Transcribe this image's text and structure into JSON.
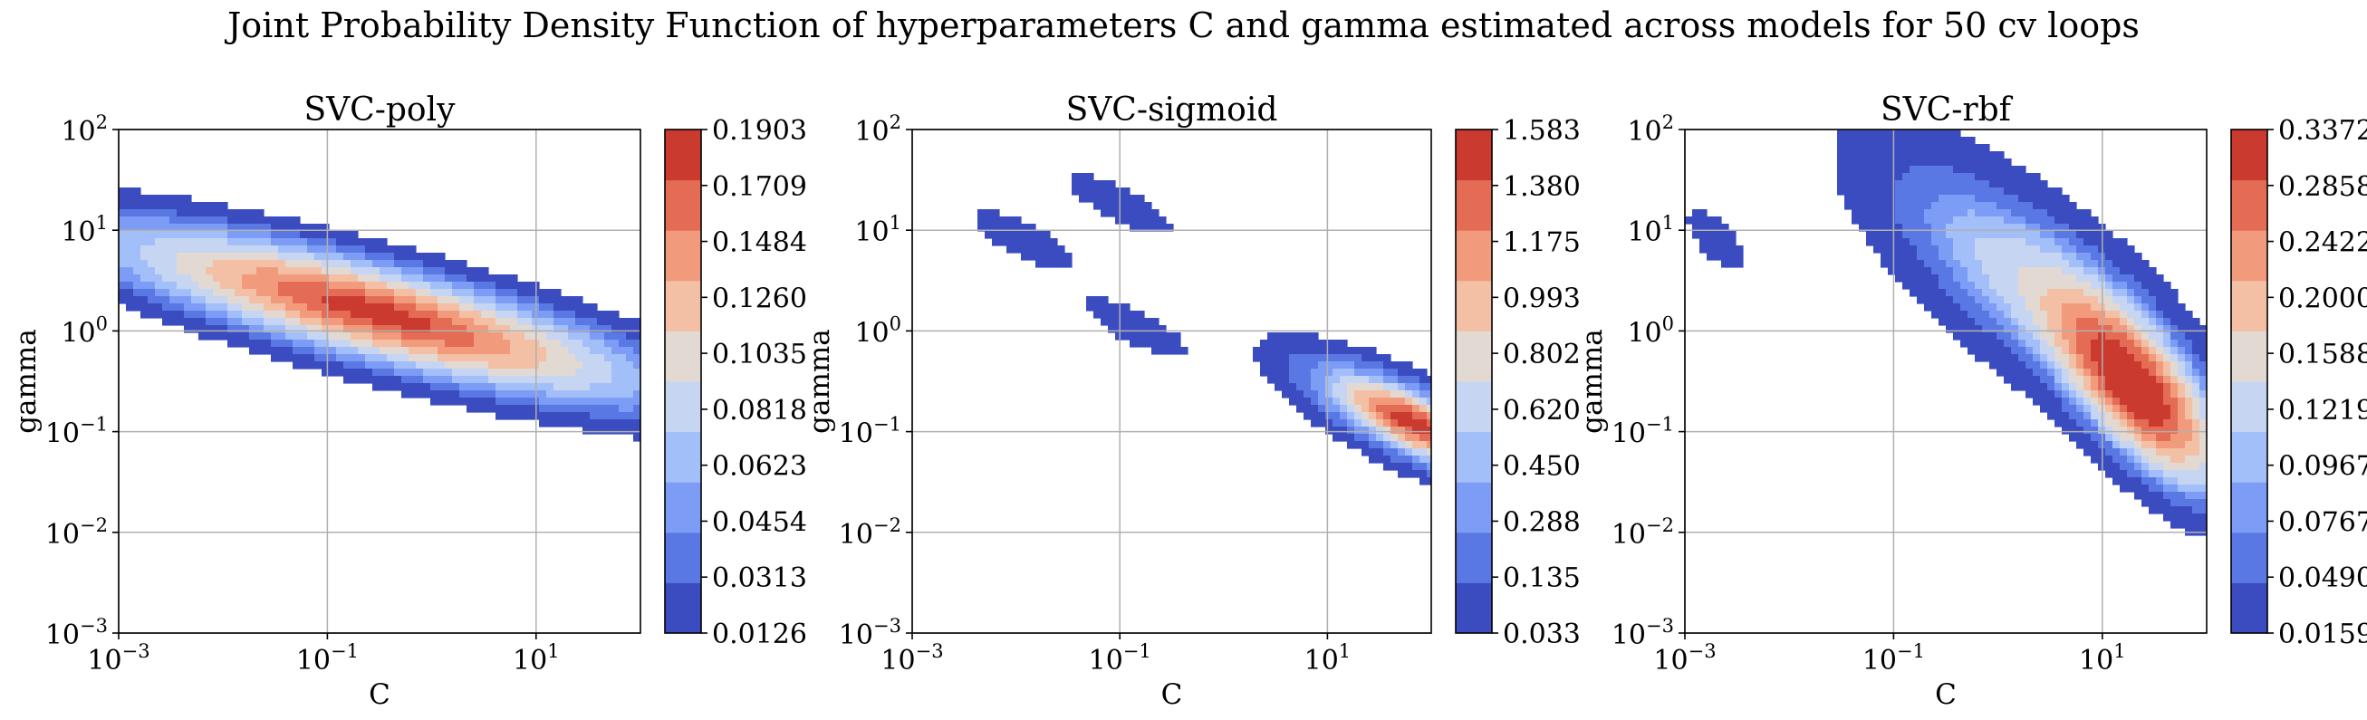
{
  "suptitle": "Joint Probability Density Function of hyperparameters C and gamma estimated across models for 50 cv loops",
  "palette": {
    "levels": [
      "#3b4cc0",
      "#5a78e3",
      "#7d9cf5",
      "#a3bffa",
      "#c6d5f2",
      "#e2d9d3",
      "#f4c0a5",
      "#f29b7c",
      "#e46c54",
      "#cb3a2f"
    ],
    "grid": "#b0b0b0"
  },
  "chart_data": [
    {
      "type": "heatmap",
      "subtype": "filled-contour",
      "title": "SVC-poly",
      "xlabel": "C",
      "ylabel": "gamma",
      "xscale": "log",
      "yscale": "log",
      "xlim": [
        0.001,
        100
      ],
      "ylim": [
        0.001,
        100
      ],
      "xticks": [
        0.001,
        0.1,
        10
      ],
      "xtick_labels": [
        {
          "base": "10",
          "exp": "−3"
        },
        {
          "base": "10",
          "exp": "−1"
        },
        {
          "base": "10",
          "exp": "1"
        }
      ],
      "yticks": [
        0.001,
        0.01,
        0.1,
        1,
        10,
        100
      ],
      "ytick_labels": [
        {
          "base": "10",
          "exp": "−3"
        },
        {
          "base": "10",
          "exp": "−2"
        },
        {
          "base": "10",
          "exp": "−1"
        },
        {
          "base": "10",
          "exp": "0"
        },
        {
          "base": "10",
          "exp": "1"
        },
        {
          "base": "10",
          "exp": "2"
        }
      ],
      "grid": true,
      "colorbar_levels": [
        "0.0126",
        "0.0313",
        "0.0454",
        "0.0623",
        "0.0818",
        "0.1035",
        "0.1260",
        "0.1484",
        "0.1709",
        "0.1903"
      ],
      "blobs": [
        {
          "C": 0.3,
          "gamma": 1.5,
          "sx": 1.7,
          "sy": 0.55,
          "rho": -0.82,
          "amp": 0.2
        }
      ]
    },
    {
      "type": "heatmap",
      "subtype": "filled-contour",
      "title": "SVC-sigmoid",
      "xlabel": "C",
      "ylabel": "gamma",
      "xscale": "log",
      "yscale": "log",
      "xlim": [
        0.001,
        100
      ],
      "ylim": [
        0.001,
        100
      ],
      "xticks": [
        0.001,
        0.1,
        10
      ],
      "xtick_labels": [
        {
          "base": "10",
          "exp": "−3"
        },
        {
          "base": "10",
          "exp": "−1"
        },
        {
          "base": "10",
          "exp": "1"
        }
      ],
      "yticks": [
        0.001,
        0.01,
        0.1,
        1,
        10,
        100
      ],
      "ytick_labels": [
        {
          "base": "10",
          "exp": "−3"
        },
        {
          "base": "10",
          "exp": "−2"
        },
        {
          "base": "10",
          "exp": "−1"
        },
        {
          "base": "10",
          "exp": "0"
        },
        {
          "base": "10",
          "exp": "1"
        },
        {
          "base": "10",
          "exp": "2"
        }
      ],
      "grid": true,
      "colorbar_levels": [
        "0.033",
        "0.135",
        "0.288",
        "0.450",
        "0.620",
        "0.802",
        "0.993",
        "1.175",
        "1.380",
        "1.583"
      ],
      "blobs": [
        {
          "C": 70,
          "gamma": 0.12,
          "sx": 0.55,
          "sy": 0.32,
          "rho": -0.78,
          "amp": 1.72
        },
        {
          "C": 0.012,
          "gamma": 8,
          "sx": 0.3,
          "sy": 0.18,
          "rho": -0.78,
          "amp": 0.12
        },
        {
          "C": 0.1,
          "gamma": 18,
          "sx": 0.3,
          "sy": 0.18,
          "rho": -0.78,
          "amp": 0.12
        },
        {
          "C": 0.14,
          "gamma": 1.1,
          "sx": 0.3,
          "sy": 0.18,
          "rho": -0.78,
          "amp": 0.12
        }
      ]
    },
    {
      "type": "heatmap",
      "subtype": "filled-contour",
      "title": "SVC-rbf",
      "xlabel": "C",
      "ylabel": "gamma",
      "xscale": "log",
      "yscale": "log",
      "xlim": [
        0.001,
        100
      ],
      "ylim": [
        0.001,
        100
      ],
      "xticks": [
        0.001,
        0.1,
        10
      ],
      "xtick_labels": [
        {
          "base": "10",
          "exp": "−3"
        },
        {
          "base": "10",
          "exp": "−1"
        },
        {
          "base": "10",
          "exp": "1"
        }
      ],
      "yticks": [
        0.001,
        0.01,
        0.1,
        1,
        10,
        100
      ],
      "ytick_labels": [
        {
          "base": "10",
          "exp": "−3"
        },
        {
          "base": "10",
          "exp": "−2"
        },
        {
          "base": "10",
          "exp": "−1"
        },
        {
          "base": "10",
          "exp": "0"
        },
        {
          "base": "10",
          "exp": "1"
        },
        {
          "base": "10",
          "exp": "2"
        }
      ],
      "grid": true,
      "colorbar_levels": [
        "0.0159",
        "0.0490",
        "0.0767",
        "0.0967",
        "0.1219",
        "0.1588",
        "0.2000",
        "0.2422",
        "0.2858",
        "0.3372"
      ],
      "blobs": [
        {
          "C": 22,
          "gamma": 0.25,
          "sx": 0.5,
          "sy": 0.6,
          "rho": -0.7,
          "amp": 0.36
        },
        {
          "C": 2,
          "gamma": 3,
          "sx": 0.9,
          "sy": 0.8,
          "rho": -0.75,
          "amp": 0.14
        },
        {
          "C": 0.002,
          "gamma": 8,
          "sx": 0.2,
          "sy": 0.22,
          "rho": -0.7,
          "amp": 0.04
        }
      ]
    }
  ]
}
